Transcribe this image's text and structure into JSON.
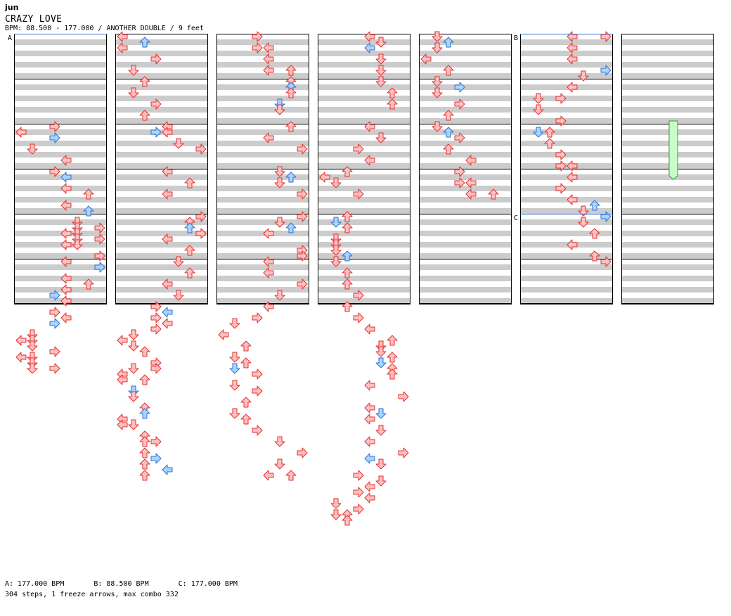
{
  "header": {
    "artist": "jun",
    "title": "CRAZY LOVE",
    "info": "BPM: 88.500 - 177.000 / ANOTHER DOUBLE / 9 feet"
  },
  "footer": {
    "bpm_changes": [
      "A: 177.000 BPM",
      "B: 88.500 BPM",
      "C: 177.000 BPM"
    ],
    "stats": "304 steps, 1 freeze arrows, max combo 332"
  },
  "markers": [
    {
      "label": "A",
      "col": 0,
      "row": 0
    },
    {
      "label": "B",
      "col": 5,
      "row": 0
    },
    {
      "label": "C",
      "col": 5,
      "row": 32
    }
  ],
  "colors": {
    "stripe": "#cccccc",
    "lane_bg": "#ffffff",
    "border": "#000000",
    "note_red_fill": "#ffc0c0",
    "note_red_stroke": "#e03030",
    "note_blue_fill": "#a8d4ff",
    "note_blue_stroke": "#3070d0",
    "freeze_fill": "#c8ffc8",
    "freeze_stroke": "#30a030",
    "marker_line": "#3070d0"
  },
  "chart_data": {
    "type": "step_chart",
    "columns": 7,
    "rows_per_column": 48,
    "lanes": [
      "left-1P",
      "down-1P",
      "up-1P",
      "right-1P",
      "left-2P",
      "down-2P",
      "up-2P",
      "right-2P"
    ],
    "notes": [
      [
        0,
        16,
        3,
        "r"
      ],
      [
        0,
        17,
        0,
        "r"
      ],
      [
        0,
        18,
        3,
        "b"
      ],
      [
        0,
        20,
        1,
        "r"
      ],
      [
        0,
        22,
        4,
        "r"
      ],
      [
        0,
        24,
        3,
        "r"
      ],
      [
        0,
        25,
        4,
        "b"
      ],
      [
        0,
        27,
        4,
        "r"
      ],
      [
        0,
        28,
        6,
        "r"
      ],
      [
        0,
        30,
        4,
        "r"
      ],
      [
        0,
        31,
        6,
        "b"
      ],
      [
        0,
        33,
        5,
        "r"
      ],
      [
        0,
        34,
        5,
        "r"
      ],
      [
        0,
        34,
        7,
        "r"
      ],
      [
        0,
        35,
        4,
        "r"
      ],
      [
        0,
        35,
        5,
        "r"
      ],
      [
        0,
        36,
        5,
        "r"
      ],
      [
        0,
        36,
        7,
        "r"
      ],
      [
        0,
        37,
        4,
        "r"
      ],
      [
        0,
        37,
        5,
        "r"
      ],
      [
        0,
        39,
        7,
        "r"
      ],
      [
        0,
        40,
        4,
        "r"
      ],
      [
        0,
        41,
        7,
        "b"
      ],
      [
        0,
        43,
        4,
        "r"
      ],
      [
        0,
        44,
        6,
        "r"
      ],
      [
        0,
        45,
        4,
        "r"
      ],
      [
        0,
        46,
        3,
        "b"
      ],
      [
        0,
        47,
        4,
        "r"
      ],
      [
        0,
        49,
        3,
        "r"
      ],
      [
        0,
        50,
        4,
        "r"
      ],
      [
        0,
        51,
        3,
        "b"
      ],
      [
        0,
        53,
        1,
        "r"
      ],
      [
        0,
        54,
        0,
        "r"
      ],
      [
        0,
        54,
        1,
        "r"
      ],
      [
        0,
        55,
        1,
        "r"
      ],
      [
        0,
        56,
        3,
        "r"
      ],
      [
        0,
        57,
        0,
        "r"
      ],
      [
        0,
        57,
        1,
        "r"
      ],
      [
        0,
        58,
        1,
        "r"
      ],
      [
        0,
        59,
        1,
        "r"
      ],
      [
        0,
        59,
        3,
        "r"
      ],
      [
        1,
        0,
        0,
        "r"
      ],
      [
        1,
        1,
        2,
        "b"
      ],
      [
        1,
        2,
        0,
        "r"
      ],
      [
        1,
        4,
        3,
        "r"
      ],
      [
        1,
        6,
        1,
        "r"
      ],
      [
        1,
        8,
        2,
        "r"
      ],
      [
        1,
        10,
        1,
        "r"
      ],
      [
        1,
        12,
        3,
        "r"
      ],
      [
        1,
        14,
        2,
        "r"
      ],
      [
        1,
        16,
        4,
        "r"
      ],
      [
        1,
        17,
        3,
        "b"
      ],
      [
        1,
        17,
        4,
        "r"
      ],
      [
        1,
        19,
        5,
        "r"
      ],
      [
        1,
        20,
        7,
        "r"
      ],
      [
        1,
        24,
        4,
        "r"
      ],
      [
        1,
        26,
        6,
        "r"
      ],
      [
        1,
        28,
        4,
        "r"
      ],
      [
        1,
        32,
        7,
        "r"
      ],
      [
        1,
        33,
        6,
        "r"
      ],
      [
        1,
        34,
        6,
        "b"
      ],
      [
        1,
        35,
        7,
        "r"
      ],
      [
        1,
        36,
        4,
        "r"
      ],
      [
        1,
        38,
        6,
        "r"
      ],
      [
        1,
        40,
        5,
        "r"
      ],
      [
        1,
        42,
        6,
        "r"
      ],
      [
        1,
        44,
        4,
        "r"
      ],
      [
        1,
        46,
        5,
        "r"
      ],
      [
        1,
        48,
        3,
        "r"
      ],
      [
        1,
        49,
        4,
        "b"
      ],
      [
        1,
        50,
        3,
        "r"
      ],
      [
        1,
        51,
        4,
        "r"
      ],
      [
        1,
        52,
        3,
        "r"
      ],
      [
        1,
        53,
        1,
        "r"
      ],
      [
        1,
        54,
        0,
        "r"
      ],
      [
        1,
        55,
        1,
        "r"
      ],
      [
        1,
        56,
        2,
        "r"
      ],
      [
        1,
        58,
        3,
        "r"
      ],
      [
        1,
        59,
        1,
        "r"
      ],
      [
        1,
        59,
        3,
        "r"
      ],
      [
        1,
        60,
        0,
        "r"
      ],
      [
        1,
        61,
        0,
        "r"
      ],
      [
        1,
        61,
        2,
        "r"
      ],
      [
        1,
        63,
        1,
        "b"
      ],
      [
        1,
        64,
        1,
        "r"
      ],
      [
        1,
        66,
        2,
        "r"
      ],
      [
        1,
        67,
        2,
        "b"
      ],
      [
        1,
        68,
        0,
        "r"
      ],
      [
        1,
        69,
        0,
        "r"
      ],
      [
        1,
        69,
        1,
        "r"
      ],
      [
        1,
        71,
        2,
        "r"
      ],
      [
        1,
        72,
        2,
        "r"
      ],
      [
        1,
        72,
        3,
        "r"
      ],
      [
        1,
        74,
        2,
        "r"
      ],
      [
        1,
        75,
        3,
        "b"
      ],
      [
        1,
        76,
        2,
        "r"
      ],
      [
        1,
        77,
        4,
        "b"
      ],
      [
        1,
        78,
        2,
        "r"
      ],
      [
        2,
        0,
        3,
        "r"
      ],
      [
        2,
        2,
        3,
        "r"
      ],
      [
        2,
        2,
        4,
        "r"
      ],
      [
        2,
        4,
        4,
        "r"
      ],
      [
        2,
        6,
        4,
        "r"
      ],
      [
        2,
        6,
        6,
        "r"
      ],
      [
        2,
        8,
        6,
        "r"
      ],
      [
        2,
        9,
        6,
        "b"
      ],
      [
        2,
        10,
        6,
        "r"
      ],
      [
        2,
        12,
        5,
        "b"
      ],
      [
        2,
        13,
        5,
        "r"
      ],
      [
        2,
        16,
        6,
        "r"
      ],
      [
        2,
        18,
        4,
        "r"
      ],
      [
        2,
        20,
        7,
        "r"
      ],
      [
        2,
        24,
        5,
        "r"
      ],
      [
        2,
        25,
        6,
        "b"
      ],
      [
        2,
        26,
        5,
        "r"
      ],
      [
        2,
        28,
        7,
        "r"
      ],
      [
        2,
        32,
        7,
        "r"
      ],
      [
        2,
        33,
        5,
        "r"
      ],
      [
        2,
        34,
        6,
        "b"
      ],
      [
        2,
        35,
        4,
        "r"
      ],
      [
        2,
        38,
        7,
        "r"
      ],
      [
        2,
        39,
        7,
        "r"
      ],
      [
        2,
        40,
        4,
        "r"
      ],
      [
        2,
        42,
        4,
        "r"
      ],
      [
        2,
        44,
        7,
        "r"
      ],
      [
        2,
        46,
        5,
        "r"
      ],
      [
        2,
        48,
        4,
        "r"
      ],
      [
        2,
        50,
        3,
        "r"
      ],
      [
        2,
        51,
        1,
        "r"
      ],
      [
        2,
        53,
        0,
        "r"
      ],
      [
        2,
        55,
        2,
        "r"
      ],
      [
        2,
        57,
        1,
        "r"
      ],
      [
        2,
        58,
        2,
        "r"
      ],
      [
        2,
        59,
        1,
        "b"
      ],
      [
        2,
        60,
        3,
        "r"
      ],
      [
        2,
        62,
        1,
        "r"
      ],
      [
        2,
        63,
        3,
        "r"
      ],
      [
        2,
        65,
        2,
        "r"
      ],
      [
        2,
        67,
        1,
        "r"
      ],
      [
        2,
        68,
        2,
        "r"
      ],
      [
        2,
        70,
        3,
        "r"
      ],
      [
        2,
        72,
        5,
        "r"
      ],
      [
        2,
        74,
        7,
        "r"
      ],
      [
        2,
        76,
        5,
        "r"
      ],
      [
        2,
        78,
        4,
        "r"
      ],
      [
        2,
        78,
        6,
        "r"
      ],
      [
        3,
        0,
        4,
        "r"
      ],
      [
        3,
        1,
        5,
        "r"
      ],
      [
        3,
        2,
        4,
        "b"
      ],
      [
        3,
        4,
        5,
        "r"
      ],
      [
        3,
        6,
        5,
        "r"
      ],
      [
        3,
        8,
        5,
        "r"
      ],
      [
        3,
        10,
        6,
        "r"
      ],
      [
        3,
        12,
        6,
        "r"
      ],
      [
        3,
        16,
        4,
        "r"
      ],
      [
        3,
        18,
        5,
        "r"
      ],
      [
        3,
        20,
        3,
        "r"
      ],
      [
        3,
        22,
        4,
        "r"
      ],
      [
        3,
        24,
        2,
        "r"
      ],
      [
        3,
        25,
        0,
        "r"
      ],
      [
        3,
        26,
        1,
        "r"
      ],
      [
        3,
        28,
        3,
        "r"
      ],
      [
        3,
        32,
        2,
        "r"
      ],
      [
        3,
        33,
        1,
        "b"
      ],
      [
        3,
        34,
        2,
        "r"
      ],
      [
        3,
        36,
        1,
        "r"
      ],
      [
        3,
        37,
        1,
        "r"
      ],
      [
        3,
        38,
        1,
        "r"
      ],
      [
        3,
        39,
        2,
        "b"
      ],
      [
        3,
        40,
        1,
        "r"
      ],
      [
        3,
        42,
        2,
        "r"
      ],
      [
        3,
        44,
        2,
        "r"
      ],
      [
        3,
        46,
        3,
        "r"
      ],
      [
        3,
        48,
        2,
        "r"
      ],
      [
        3,
        50,
        3,
        "r"
      ],
      [
        3,
        52,
        4,
        "r"
      ],
      [
        3,
        54,
        6,
        "r"
      ],
      [
        3,
        55,
        5,
        "r"
      ],
      [
        3,
        56,
        5,
        "r"
      ],
      [
        3,
        57,
        6,
        "r"
      ],
      [
        3,
        58,
        5,
        "b"
      ],
      [
        3,
        59,
        6,
        "r"
      ],
      [
        3,
        60,
        6,
        "r"
      ],
      [
        3,
        62,
        4,
        "r"
      ],
      [
        3,
        64,
        7,
        "r"
      ],
      [
        3,
        66,
        4,
        "r"
      ],
      [
        3,
        67,
        5,
        "b"
      ],
      [
        3,
        68,
        4,
        "r"
      ],
      [
        3,
        70,
        5,
        "r"
      ],
      [
        3,
        72,
        4,
        "r"
      ],
      [
        3,
        74,
        7,
        "r"
      ],
      [
        3,
        75,
        4,
        "b"
      ],
      [
        3,
        76,
        5,
        "r"
      ],
      [
        3,
        78,
        3,
        "r"
      ],
      [
        3,
        79,
        5,
        "r"
      ],
      [
        3,
        80,
        4,
        "r"
      ],
      [
        3,
        81,
        3,
        "r"
      ],
      [
        3,
        82,
        4,
        "r"
      ],
      [
        3,
        83,
        1,
        "r"
      ],
      [
        3,
        84,
        3,
        "r"
      ],
      [
        3,
        85,
        1,
        "r"
      ],
      [
        3,
        85,
        2,
        "r"
      ],
      [
        3,
        86,
        2,
        "r"
      ],
      [
        4,
        0,
        1,
        "r"
      ],
      [
        4,
        1,
        2,
        "b"
      ],
      [
        4,
        2,
        1,
        "r"
      ],
      [
        4,
        4,
        0,
        "r"
      ],
      [
        4,
        6,
        2,
        "r"
      ],
      [
        4,
        8,
        1,
        "r"
      ],
      [
        4,
        9,
        3,
        "b"
      ],
      [
        4,
        10,
        1,
        "r"
      ],
      [
        4,
        12,
        3,
        "r"
      ],
      [
        4,
        14,
        2,
        "r"
      ],
      [
        4,
        16,
        1,
        "r"
      ],
      [
        4,
        17,
        2,
        "b"
      ],
      [
        4,
        18,
        3,
        "r"
      ],
      [
        4,
        20,
        2,
        "r"
      ],
      [
        4,
        22,
        4,
        "r"
      ],
      [
        4,
        24,
        3,
        "r"
      ],
      [
        4,
        26,
        3,
        "r"
      ],
      [
        4,
        26,
        4,
        "r"
      ],
      [
        4,
        28,
        4,
        "r"
      ],
      [
        4,
        28,
        6,
        "r"
      ],
      [
        5,
        0,
        4,
        "r"
      ],
      [
        5,
        0,
        7,
        "r"
      ],
      [
        5,
        2,
        4,
        "r"
      ],
      [
        5,
        4,
        4,
        "r"
      ],
      [
        5,
        6,
        7,
        "b"
      ],
      [
        5,
        7,
        5,
        "r"
      ],
      [
        5,
        9,
        4,
        "r"
      ],
      [
        5,
        11,
        1,
        "r"
      ],
      [
        5,
        11,
        3,
        "r"
      ],
      [
        5,
        13,
        1,
        "r"
      ],
      [
        5,
        15,
        3,
        "r"
      ],
      [
        5,
        17,
        1,
        "b"
      ],
      [
        5,
        17,
        2,
        "r"
      ],
      [
        5,
        19,
        2,
        "r"
      ],
      [
        5,
        21,
        3,
        "r"
      ],
      [
        5,
        23,
        3,
        "r"
      ],
      [
        5,
        23,
        4,
        "r"
      ],
      [
        5,
        25,
        4,
        "r"
      ],
      [
        5,
        27,
        3,
        "r"
      ],
      [
        5,
        29,
        4,
        "r"
      ],
      [
        5,
        30,
        6,
        "b"
      ],
      [
        5,
        31,
        5,
        "r"
      ],
      [
        5,
        32,
        7,
        "b"
      ],
      [
        5,
        33,
        5,
        "r"
      ],
      [
        5,
        35,
        6,
        "r"
      ],
      [
        5,
        37,
        4,
        "r"
      ],
      [
        5,
        39,
        6,
        "r"
      ],
      [
        5,
        40,
        7,
        "r"
      ]
    ],
    "freezes": [
      {
        "col": 6,
        "lane": 4,
        "start_row": 15,
        "end_row": 25
      }
    ]
  }
}
